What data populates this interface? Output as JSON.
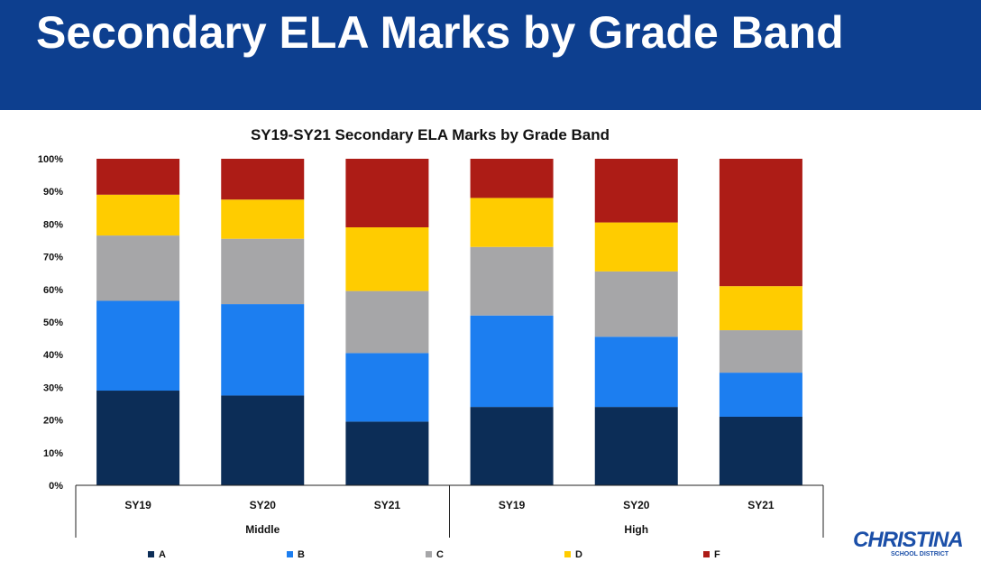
{
  "slide": {
    "title": "Secondary ELA Marks by Grade Band"
  },
  "logo": {
    "main": "CHRISTINA",
    "sub": "SCHOOL DISTRICT"
  },
  "colors": {
    "header_bg": "#0d3f8f",
    "A": "#0c2d57",
    "B": "#1c7ef0",
    "C": "#a6a6a8",
    "D": "#ffcc00",
    "F": "#ad1c16"
  },
  "chart_data": {
    "type": "bar",
    "stacked": true,
    "title": "SY19-SY21 Secondary ELA Marks by Grade Band",
    "ylim": [
      0,
      100
    ],
    "yticks": [
      "0%",
      "10%",
      "20%",
      "30%",
      "40%",
      "50%",
      "60%",
      "70%",
      "80%",
      "90%",
      "100%"
    ],
    "groups": [
      {
        "label": "Middle",
        "categories": [
          "SY19",
          "SY20",
          "SY21"
        ]
      },
      {
        "label": "High",
        "categories": [
          "SY19",
          "SY20",
          "SY21"
        ]
      }
    ],
    "categories": [
      "SY19",
      "SY20",
      "SY21",
      "SY19",
      "SY20",
      "SY21"
    ],
    "series": [
      {
        "name": "A",
        "color": "#0c2d57",
        "values": [
          29,
          27.5,
          19.5,
          24,
          24,
          21
        ]
      },
      {
        "name": "B",
        "color": "#1c7ef0",
        "values": [
          27.5,
          28,
          21,
          28,
          21.5,
          13.5
        ]
      },
      {
        "name": "C",
        "color": "#a6a6a8",
        "values": [
          20,
          20,
          19,
          21,
          20,
          13
        ]
      },
      {
        "name": "D",
        "color": "#ffcc00",
        "values": [
          12.5,
          12,
          19.5,
          15,
          15,
          13.5
        ]
      },
      {
        "name": "F",
        "color": "#ad1c16",
        "values": [
          11,
          12.5,
          21,
          12,
          19.5,
          39
        ]
      }
    ],
    "legend_position": "bottom",
    "grid": false
  }
}
